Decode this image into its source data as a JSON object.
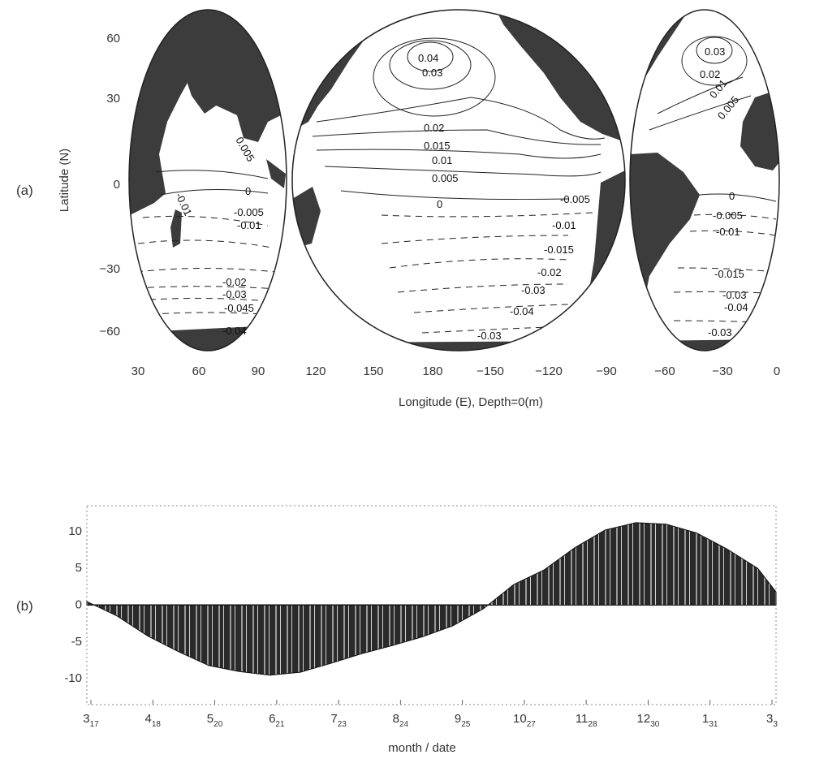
{
  "panel_a_label": "(a)",
  "panel_b_label": "(b)",
  "chart_data": [
    {
      "type": "contour-map",
      "xlabel": "Longitude (E),  Depth=0(m)",
      "ylabel": "Latitude (N)",
      "x_ticks": [
        "30",
        "60",
        "90",
        "120",
        "150",
        "180",
        "−150",
        "−120",
        "−90",
        "−60",
        "−30",
        "0"
      ],
      "y_ticks": [
        "60",
        "30",
        "0",
        "−30",
        "−60"
      ],
      "contour_labels": {
        "indian": [
          "0.005",
          "0",
          "-0.01",
          "-0.005",
          "-0.01",
          "-0.02",
          "-0.03",
          "-0.045",
          "-0.04"
        ],
        "pacific": [
          "0.04",
          "0.03",
          "0.02",
          "0.015",
          "0.01",
          "0.005",
          "0",
          "-0.005",
          "-0.01",
          "-0.015",
          "-0.02",
          "-0.03",
          "-0.04",
          "-0.03"
        ],
        "atlantic": [
          "0.03",
          "0.02",
          "0.01",
          "0.005",
          "0",
          "-0.005",
          "-0.01",
          "-0.015",
          "-0.03",
          "-0.04",
          "-0.03"
        ]
      },
      "colors": {
        "land": "#404040",
        "ocean": "#ffffff",
        "contour": "#222222"
      }
    },
    {
      "type": "area",
      "xlabel": "month / date",
      "ylabel": "",
      "x_tick_labels": [
        {
          "m": "3",
          "d": "17"
        },
        {
          "m": "4",
          "d": "18"
        },
        {
          "m": "5",
          "d": "20"
        },
        {
          "m": "6",
          "d": "21"
        },
        {
          "m": "7",
          "d": "23"
        },
        {
          "m": "8",
          "d": "24"
        },
        {
          "m": "9",
          "d": "25"
        },
        {
          "m": "10",
          "d": "27"
        },
        {
          "m": "11",
          "d": "28"
        },
        {
          "m": "12",
          "d": "30"
        },
        {
          "m": "1",
          "d": "31"
        },
        {
          "m": "3",
          "d": "3"
        }
      ],
      "y_ticks": [
        10,
        5,
        0,
        -5,
        -10
      ],
      "y_tick_labels": [
        "10",
        "5",
        "0",
        "-5",
        "-10"
      ],
      "ylim": [
        -13.5,
        13.5
      ],
      "x_index": [
        0,
        0.5,
        1,
        1.5,
        2,
        2.5,
        3,
        3.5,
        4,
        4.5,
        5,
        5.5,
        6,
        6.5,
        7,
        7.5,
        8,
        8.5,
        9,
        9.5,
        10,
        10.5,
        11,
        11.3
      ],
      "values": [
        0.5,
        -1.5,
        -4.2,
        -6.3,
        -8.2,
        -9.0,
        -9.5,
        -9.1,
        -7.9,
        -6.6,
        -5.5,
        -4.3,
        -2.8,
        -0.5,
        2.8,
        4.8,
        7.8,
        10.2,
        11.2,
        11.0,
        9.8,
        7.6,
        5.0,
        1.8
      ],
      "colors": {
        "fill": "#2a2a2a",
        "stripe": "#b8b8b8"
      }
    }
  ]
}
